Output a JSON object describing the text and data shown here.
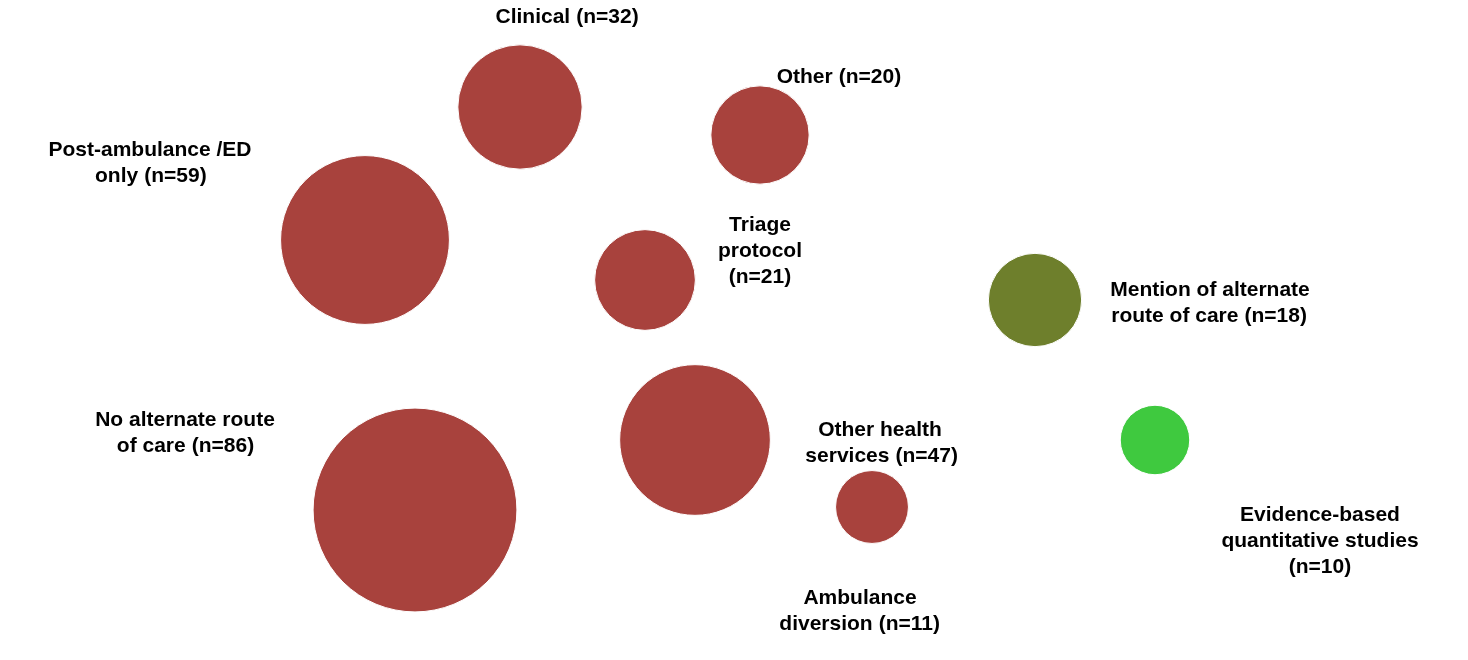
{
  "chart_data": {
    "type": "other",
    "categories": [
      "Clinical",
      "Other",
      "Post-ambulance /ED only",
      "Triage protocol",
      "Mention of alternate route of care",
      "No alternate route of care",
      "Other health services",
      "Evidence-based quantitative studies",
      "Ambulance diversion"
    ],
    "values": [
      32,
      20,
      59,
      21,
      18,
      86,
      47,
      10,
      11
    ],
    "value_labels": [
      "(n=32)",
      "(n=20)",
      "(n=59)",
      "(n=21)",
      "(n=18)",
      "(n=86)",
      "(n=47)",
      "(n=10)",
      "(n=11)"
    ],
    "colors": [
      "#a8423d",
      "#a8423d",
      "#a8423d",
      "#a8423d",
      "#6e7f2c",
      "#a8423d",
      "#a8423d",
      "#3fc93f",
      "#a8423d"
    ]
  }
}
